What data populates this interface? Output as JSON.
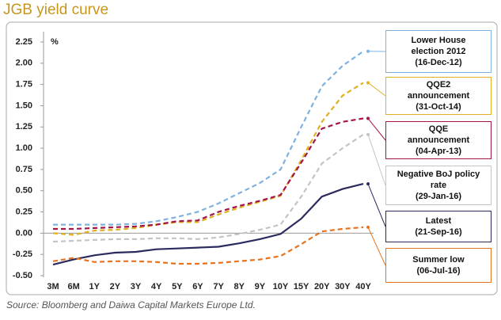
{
  "chart_data": {
    "type": "line",
    "title": "JGB yield curve",
    "y_label": "%",
    "source": "Source: Bloomberg and Daiwa Capital Markets Europe Ltd.",
    "categories": [
      "3M",
      "6M",
      "1Y",
      "2Y",
      "3Y",
      "4Y",
      "5Y",
      "6Y",
      "7Y",
      "8Y",
      "9Y",
      "10Y",
      "15Y",
      "20Y",
      "30Y",
      "40Y"
    ],
    "ylim": [
      -0.5,
      2.25
    ],
    "yticks": [
      {
        "value": -0.5,
        "label": "-0.50"
      },
      {
        "value": -0.25,
        "label": "-0.25"
      },
      {
        "value": 0,
        "label": "0.00"
      },
      {
        "value": 0.25,
        "label": "0.25"
      },
      {
        "value": 0.5,
        "label": "0.50"
      },
      {
        "value": 0.75,
        "label": "0.75"
      },
      {
        "value": 1,
        "label": "1.00"
      },
      {
        "value": 1.25,
        "label": "1.25"
      },
      {
        "value": 1.5,
        "label": "1.50"
      },
      {
        "value": 1.75,
        "label": "1.75"
      },
      {
        "value": 2,
        "label": "2.00"
      },
      {
        "value": 2.25,
        "label": "2.25"
      }
    ],
    "series": [
      {
        "name": "Lower House\nelection 2012\n(16-Dec-12)",
        "color": "#7fb2e0",
        "dashed": true,
        "values": [
          0.1,
          0.1,
          0.1,
          0.1,
          0.11,
          0.14,
          0.19,
          0.25,
          0.35,
          0.47,
          0.59,
          0.75,
          1.25,
          1.73,
          1.97,
          2.14
        ]
      },
      {
        "name": "QQE2\nannouncement\n(31-Oct-14)",
        "color": "#e0b020",
        "dashed": true,
        "values": [
          0.0,
          -0.02,
          0.03,
          0.04,
          0.06,
          0.1,
          0.13,
          0.13,
          0.22,
          0.3,
          0.37,
          0.44,
          0.86,
          1.31,
          1.62,
          1.77
        ]
      },
      {
        "name": "QQE\nannouncement\n(04-Apr-13)",
        "color": "#a3144a",
        "dashed": true,
        "values": [
          0.05,
          0.05,
          0.06,
          0.07,
          0.08,
          0.1,
          0.14,
          0.15,
          0.25,
          0.32,
          0.38,
          0.45,
          0.83,
          1.23,
          1.31,
          1.35
        ]
      },
      {
        "name": "Negative BoJ policy\nrate\n(29-Jan-16)",
        "color": "#c4c4c4",
        "dashed": true,
        "values": [
          -0.1,
          -0.09,
          -0.08,
          -0.07,
          -0.07,
          -0.06,
          -0.06,
          -0.07,
          -0.05,
          -0.01,
          0.04,
          0.1,
          0.43,
          0.82,
          1.0,
          1.16
        ]
      },
      {
        "name": "Latest\n(21-Sep-16)",
        "color": "#2b2a5e",
        "dashed": false,
        "values": [
          -0.37,
          -0.31,
          -0.26,
          -0.23,
          -0.22,
          -0.19,
          -0.18,
          -0.17,
          -0.16,
          -0.12,
          -0.07,
          -0.01,
          0.17,
          0.43,
          0.52,
          0.58
        ]
      },
      {
        "name": "Summer low\n(06-Jul-16)",
        "color": "#e8731e",
        "dashed": true,
        "values": [
          -0.33,
          -0.29,
          -0.34,
          -0.33,
          -0.33,
          -0.34,
          -0.36,
          -0.36,
          -0.35,
          -0.33,
          -0.31,
          -0.27,
          -0.13,
          0.02,
          0.05,
          0.07
        ]
      }
    ]
  }
}
